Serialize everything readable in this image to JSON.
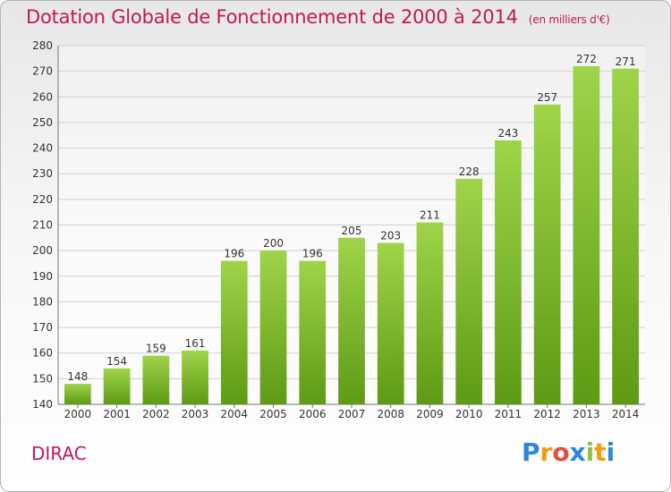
{
  "header": {
    "title": "Dotation Globale de Fonctionnement de 2000 à 2014",
    "subtitle": "(en milliers d'€)"
  },
  "footer": {
    "commune": "DIRAC",
    "logo_text": "Proxiti",
    "logo_letters": [
      {
        "ch": "P",
        "color": "#2e86de"
      },
      {
        "ch": "r",
        "color": "#f39c12"
      },
      {
        "ch": "o",
        "color": "#e74c3c"
      },
      {
        "ch": "x",
        "color": "#2e86de"
      },
      {
        "ch": "i",
        "color": "#8bc34a"
      },
      {
        "ch": "t",
        "color": "#f39c12"
      },
      {
        "ch": "i",
        "color": "#2e86de"
      }
    ]
  },
  "colors": {
    "bar_top": "#9fd44a",
    "bar_bottom": "#5e9a15",
    "accent": "#c2185b",
    "grid": "#d0d0d0"
  },
  "chart_data": {
    "type": "bar",
    "title": "Dotation Globale de Fonctionnement de 2000 à 2014",
    "subtitle": "(en milliers d'€)",
    "categories": [
      "2000",
      "2001",
      "2002",
      "2003",
      "2004",
      "2005",
      "2006",
      "2007",
      "2008",
      "2009",
      "2010",
      "2011",
      "2012",
      "2013",
      "2014"
    ],
    "values": [
      148,
      154,
      159,
      161,
      196,
      200,
      196,
      205,
      203,
      211,
      228,
      243,
      257,
      272,
      271
    ],
    "ylim": [
      140,
      280
    ],
    "yticks": [
      140,
      150,
      160,
      170,
      180,
      190,
      200,
      210,
      220,
      230,
      240,
      250,
      260,
      270,
      280
    ],
    "grid": true
  }
}
